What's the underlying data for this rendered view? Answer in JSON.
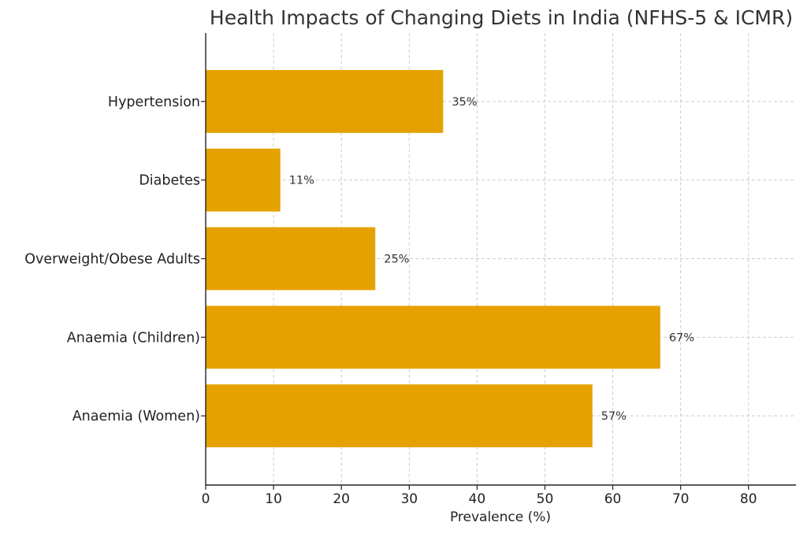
{
  "chart_data": {
    "type": "bar",
    "orientation": "horizontal",
    "title": "Health Impacts of Changing Diets in India (NFHS-5 & ICMR)",
    "xlabel": "Prevalence (%)",
    "ylabel": "",
    "categories": [
      "Anaemia (Women)",
      "Anaemia (Children)",
      "Overweight/Obese Adults",
      "Diabetes",
      "Hypertension"
    ],
    "values": [
      57,
      67,
      25,
      11,
      35
    ],
    "data_labels": [
      "57%",
      "67%",
      "25%",
      "11%",
      "35%"
    ],
    "xlim": [
      0,
      87
    ],
    "xticks": [
      0,
      10,
      20,
      30,
      40,
      50,
      60,
      70,
      80
    ],
    "grid": true,
    "bar_color": "#E5A100"
  }
}
